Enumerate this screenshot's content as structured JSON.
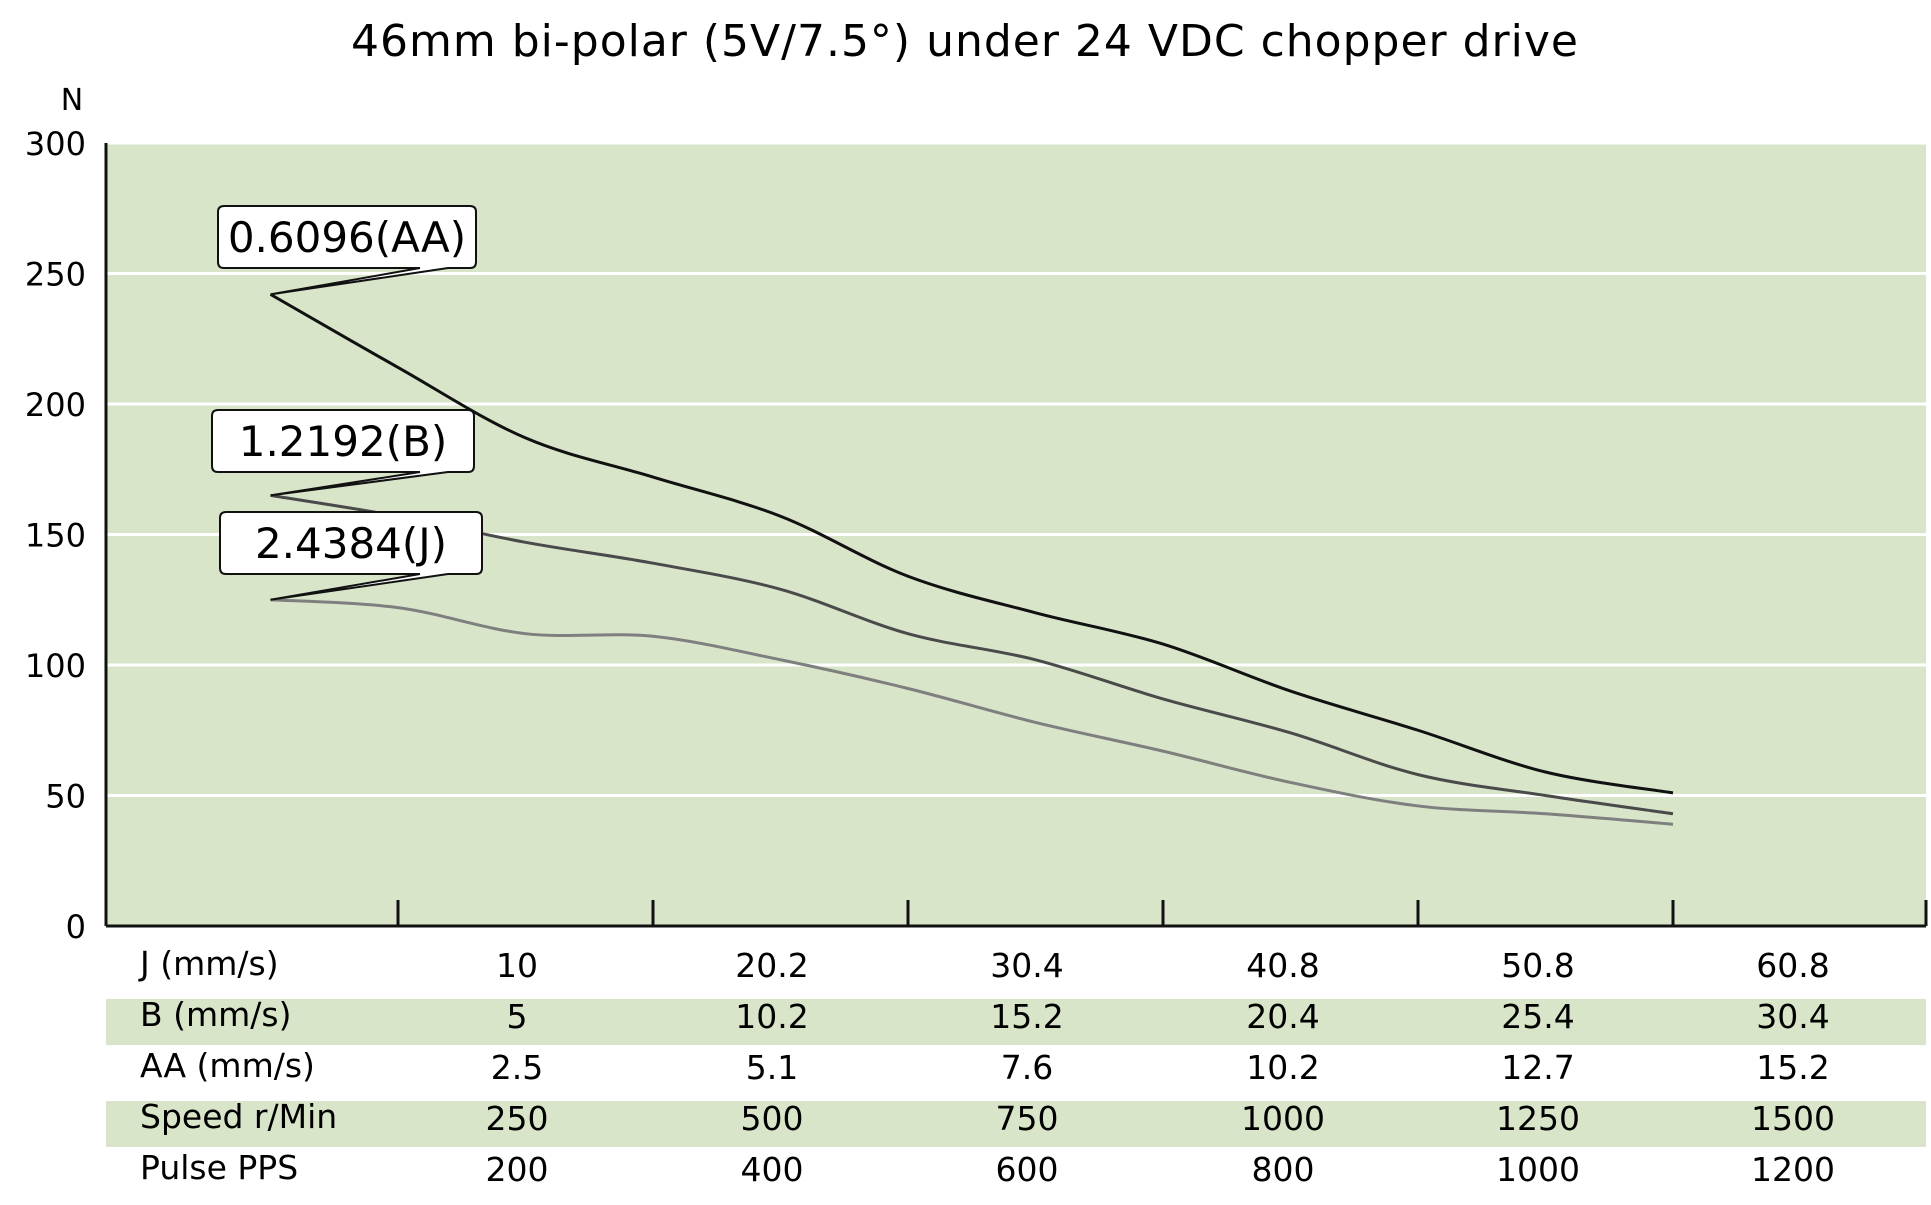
{
  "chart_data": {
    "type": "line",
    "title": "46mm bi-polar (5V/7.5°) under 24 VDC chopper drive",
    "ylabel": "N",
    "ylim": [
      0,
      300
    ],
    "yticks": [
      "300",
      "250",
      "200",
      "150",
      "100",
      "50",
      "0"
    ],
    "grid": true,
    "x_axis": "Speed r/Min",
    "xlim": [
      0,
      1600
    ],
    "series": [
      {
        "name": "0.6096(AA)",
        "color": "#111111",
        "x": [
          125,
          250,
          375,
          500,
          625,
          750,
          875,
          1000,
          1125,
          1250,
          1375,
          1500
        ],
        "y": [
          242,
          214,
          187,
          172,
          157,
          134,
          120,
          108,
          90,
          75,
          59,
          51
        ]
      },
      {
        "name": "1.2192(B)",
        "color": "#4a4a4a",
        "x": [
          125,
          250,
          375,
          500,
          625,
          750,
          875,
          1000,
          1125,
          1250,
          1375,
          1500
        ],
        "y": [
          165,
          157,
          147,
          139,
          129,
          112,
          102,
          87,
          74,
          58,
          50,
          43
        ]
      },
      {
        "name": "2.4384(J)",
        "color": "#7f7f7f",
        "x": [
          125,
          250,
          375,
          500,
          625,
          750,
          875,
          1000,
          1125,
          1250,
          1375,
          1500
        ],
        "y": [
          125,
          122,
          112,
          111,
          102,
          91,
          78,
          67,
          55,
          46,
          43,
          39
        ]
      }
    ],
    "table": {
      "columns": [
        "",
        "10",
        "20.2",
        "30.4",
        "40.8",
        "50.8",
        "60.8"
      ],
      "rows": [
        {
          "label": "J (mm/s)",
          "values": [
            "10",
            "20.2",
            "30.4",
            "40.8",
            "50.8",
            "60.8"
          ]
        },
        {
          "label": "B (mm/s)",
          "values": [
            "5",
            "10.2",
            "15.2",
            "20.4",
            "25.4",
            "30.4"
          ]
        },
        {
          "label": "AA (mm/s)",
          "values": [
            "2.5",
            "5.1",
            "7.6",
            "10.2",
            "12.7",
            "15.2"
          ]
        },
        {
          "label": "Speed  r/Min",
          "values": [
            "250",
            "500",
            "750",
            "1000",
            "1250",
            "1500"
          ]
        },
        {
          "label": "Pulse  PPS",
          "values": [
            "200",
            "400",
            "600",
            "800",
            "1000",
            "1200"
          ]
        }
      ]
    }
  },
  "colors": {
    "plot_background": "#d9e5c9",
    "table_band": "#d9e5c9",
    "gridline": "#ffffff",
    "axis": "#111111",
    "callout_fill": "#ffffff"
  }
}
